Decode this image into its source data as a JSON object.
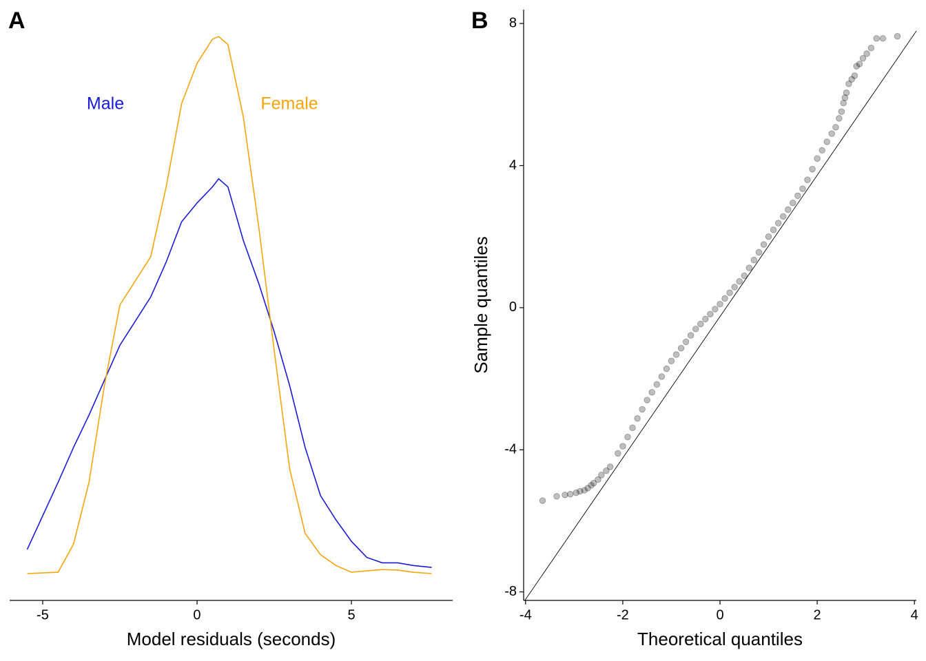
{
  "chart_data": [
    {
      "type": "density",
      "panel_label": "A",
      "x_label": "Model residuals (seconds)",
      "x": [
        -5.5,
        -4.5,
        -4,
        -3.5,
        -3,
        -2.5,
        -2,
        -1.5,
        -1,
        -0.5,
        0,
        0.5,
        0.7,
        1,
        1.5,
        2,
        2.5,
        3,
        3.5,
        4,
        4.5,
        5,
        5.5,
        6,
        6.5,
        7,
        7.6
      ],
      "series": [
        {
          "name": "Male",
          "color": "#1a1ad6",
          "values": [
            0.009,
            0.034,
            0.047,
            0.059,
            0.072,
            0.085,
            0.094,
            0.103,
            0.116,
            0.131,
            0.138,
            0.144,
            0.147,
            0.144,
            0.124,
            0.108,
            0.09,
            0.07,
            0.047,
            0.029,
            0.02,
            0.012,
            0.006,
            0.004,
            0.004,
            0.003,
            0.0023
          ]
        },
        {
          "name": "Female",
          "color": "#f5a40a",
          "values": [
            0,
            0.0005,
            0.011,
            0.034,
            0.07,
            0.1,
            0.109,
            0.118,
            0.144,
            0.175,
            0.19,
            0.199,
            0.2,
            0.197,
            0.17,
            0.129,
            0.083,
            0.039,
            0.015,
            0.007,
            0.003,
            0.0005,
            0.001,
            0.0015,
            0.0013,
            0.0005,
            0
          ]
        }
      ],
      "xlim": [
        -6.07,
        8.28
      ],
      "xticks": [
        -5,
        0,
        5
      ],
      "ylim": [
        -0.01,
        0.21
      ]
    },
    {
      "type": "scatter",
      "panel_label": "B",
      "x_label": "Theoretical quantiles",
      "y_label": "Sample quantiles",
      "color": "#000000",
      "x": [
        -3.65,
        -3.36,
        -3.19,
        -3.08,
        -2.96,
        -2.88,
        -2.79,
        -2.72,
        -2.65,
        -2.6,
        -2.51,
        -2.44,
        -2.34,
        -2.26,
        -2.1,
        -2.0,
        -1.9,
        -1.8,
        -1.7,
        -1.6,
        -1.5,
        -1.4,
        -1.3,
        -1.2,
        -1.1,
        -1.0,
        -0.9,
        -0.8,
        -0.7,
        -0.6,
        -0.5,
        -0.4,
        -0.3,
        -0.2,
        -0.1,
        0,
        0.1,
        0.2,
        0.3,
        0.4,
        0.5,
        0.6,
        0.7,
        0.8,
        0.9,
        1.0,
        1.1,
        1.2,
        1.3,
        1.4,
        1.5,
        1.6,
        1.7,
        1.8,
        1.9,
        2.0,
        2.1,
        2.2,
        2.3,
        2.38,
        2.45,
        2.5,
        2.54,
        2.57,
        2.6,
        2.65,
        2.71,
        2.77,
        2.81,
        2.87,
        2.94,
        3.02,
        3.11,
        3.22,
        3.35,
        3.65
      ],
      "y": [
        -5.43,
        -5.31,
        -5.27,
        -5.25,
        -5.21,
        -5.17,
        -5.14,
        -5.08,
        -5.0,
        -4.94,
        -4.84,
        -4.71,
        -4.59,
        -4.48,
        -4.1,
        -3.9,
        -3.64,
        -3.38,
        -3.12,
        -2.86,
        -2.6,
        -2.38,
        -2.16,
        -1.94,
        -1.72,
        -1.5,
        -1.32,
        -1.14,
        -0.96,
        -0.78,
        -0.6,
        -0.46,
        -0.32,
        -0.18,
        -0.04,
        0.1,
        0.26,
        0.42,
        0.58,
        0.74,
        0.9,
        1.12,
        1.34,
        1.56,
        1.78,
        2.0,
        2.19,
        2.38,
        2.57,
        2.76,
        2.95,
        3.15,
        3.35,
        3.6,
        3.9,
        4.2,
        4.43,
        4.67,
        4.9,
        5.08,
        5.33,
        5.52,
        5.76,
        5.91,
        6.05,
        6.3,
        6.43,
        6.53,
        6.8,
        6.86,
        7.02,
        7.15,
        7.31,
        7.58,
        7.58,
        7.64
      ],
      "ref_line": {
        "intercept": -0.25,
        "slope": 1.99
      },
      "xlim": [
        -4.04,
        4.04
      ],
      "xticks": [
        -4,
        -2,
        0,
        2,
        4
      ],
      "ylim": [
        -8.24,
        8.39
      ],
      "yticks": [
        -8,
        -4,
        0,
        4,
        8
      ]
    }
  ]
}
